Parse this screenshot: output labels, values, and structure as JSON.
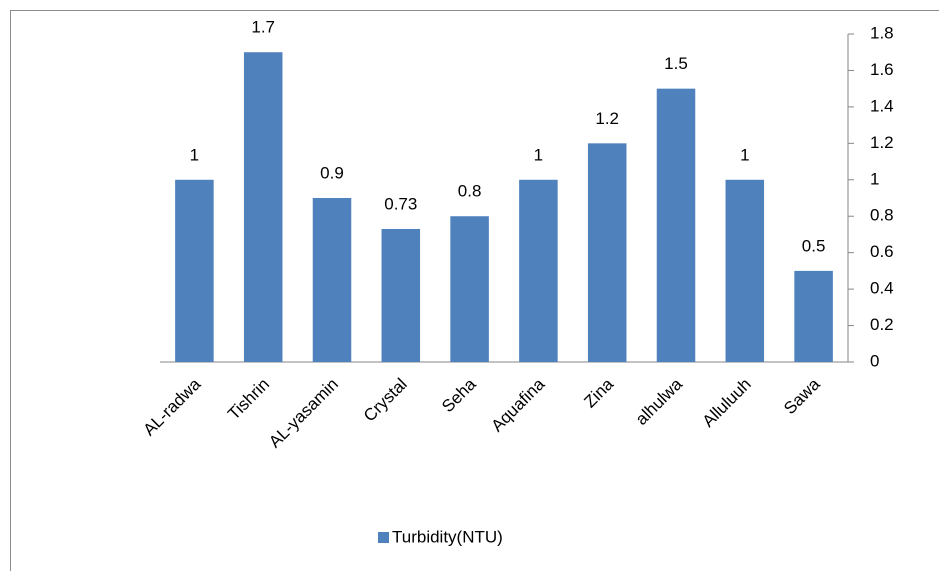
{
  "chart_data": {
    "type": "bar",
    "categories": [
      "AL-radwa",
      "Tishrin",
      "AL-yasamin",
      "Crystal",
      "Seha",
      "Aquafina",
      "Zina",
      "alhulwa",
      "Alluluuh",
      "Sawa"
    ],
    "series": [
      {
        "name": "Turbidity(NTU)",
        "color": "#4f81bd",
        "values": [
          1,
          1.7,
          0.9,
          0.73,
          0.8,
          1,
          1.2,
          1.5,
          1,
          0.5
        ]
      }
    ],
    "ylim": [
      0,
      1.8
    ],
    "yticks": [
      0,
      0.2,
      0.4,
      0.6,
      0.8,
      1,
      1.2,
      1.4,
      1.6,
      1.8
    ],
    "y_axis_position": "right",
    "legend": "bottom",
    "grid": false
  }
}
